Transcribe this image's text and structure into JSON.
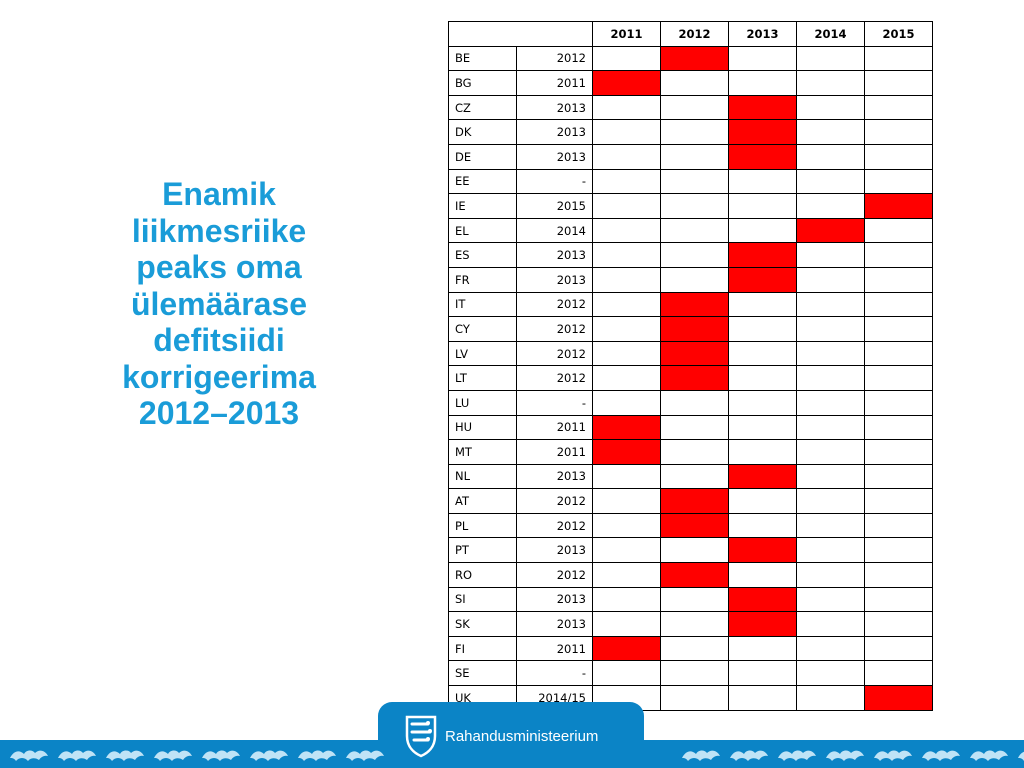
{
  "headline": "Enamik\nliikmesriike\npeaks oma\nülemäärase\ndefitsiidi\nkorrigeerima\n2012–2013",
  "table": {
    "year_headers": [
      "2011",
      "2012",
      "2013",
      "2014",
      "2015"
    ],
    "rows": [
      {
        "country": "BE",
        "target": "2012"
      },
      {
        "country": "BG",
        "target": "2011"
      },
      {
        "country": "CZ",
        "target": "2013"
      },
      {
        "country": "DK",
        "target": "2013"
      },
      {
        "country": "DE",
        "target": "2013"
      },
      {
        "country": "EE",
        "target": "-"
      },
      {
        "country": "IE",
        "target": "2015"
      },
      {
        "country": "EL",
        "target": "2014"
      },
      {
        "country": "ES",
        "target": "2013"
      },
      {
        "country": "FR",
        "target": "2013"
      },
      {
        "country": "IT",
        "target": "2012"
      },
      {
        "country": "CY",
        "target": "2012"
      },
      {
        "country": "LV",
        "target": "2012"
      },
      {
        "country": "LT",
        "target": "2012"
      },
      {
        "country": "LU",
        "target": "-"
      },
      {
        "country": "HU",
        "target": "2011"
      },
      {
        "country": "MT",
        "target": "2011"
      },
      {
        "country": "NL",
        "target": "2013"
      },
      {
        "country": "AT",
        "target": "2012"
      },
      {
        "country": "PL",
        "target": "2012"
      },
      {
        "country": "PT",
        "target": "2013"
      },
      {
        "country": "RO",
        "target": "2012"
      },
      {
        "country": "SI",
        "target": "2013"
      },
      {
        "country": "SK",
        "target": "2013"
      },
      {
        "country": "FI",
        "target": "2011"
      },
      {
        "country": "SE",
        "target": "-"
      },
      {
        "country": "UK",
        "target": "2014/15",
        "highlight_year": "2015"
      }
    ]
  },
  "colors": {
    "highlight": "#ff0000",
    "headline": "#1a9cd8",
    "brand_blue": "#0b84c6"
  },
  "footer": {
    "brand_name": "Rahandusministeerium",
    "crest_icon": "three-lions-crest-icon",
    "pattern_icon": "lion-ornament-icon"
  }
}
